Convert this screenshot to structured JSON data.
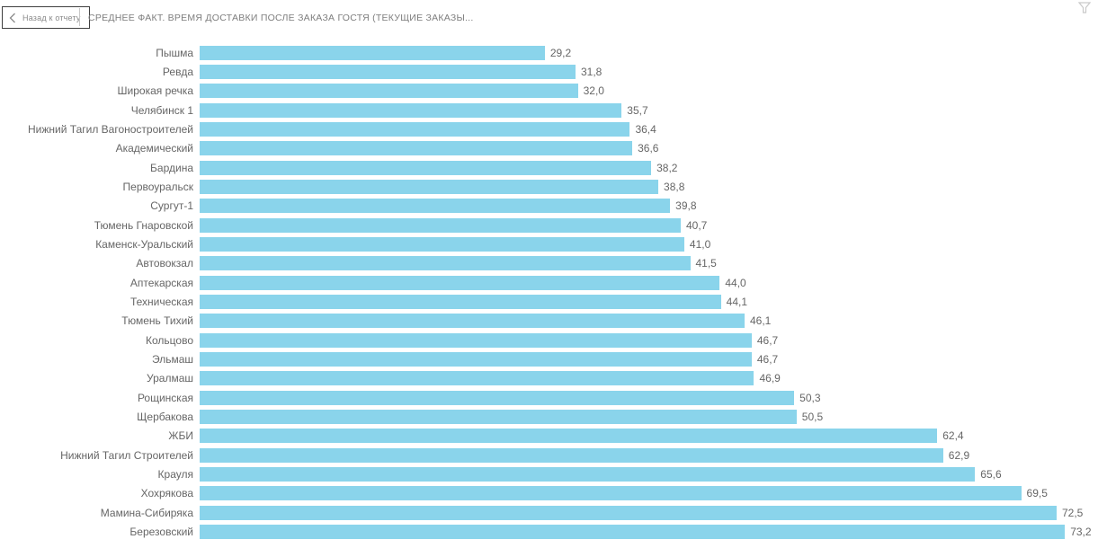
{
  "header": {
    "back_button_label": "Назад к отчету",
    "title": "СРЕДНЕЕ ФАКТ. ВРЕМЯ ДОСТАВКИ ПОСЛЕ ЗАКАЗА ГОСТЯ (ТЕКУЩИЕ ЗАКАЗЫ...",
    "filter_icon": "funnel-icon"
  },
  "colors": {
    "bar": "#8AD4EB",
    "label": "#666666",
    "title": "#7e7e7e",
    "back_border": "#3f3f3f",
    "icon_gray": "#c9c9c9"
  },
  "chart_data": {
    "type": "bar",
    "orientation": "horizontal",
    "title": "СРЕДНЕЕ ФАКТ. ВРЕМЯ ДОСТАВКИ ПОСЛЕ ЗАКАЗА ГОСТЯ (ТЕКУЩИЕ ЗАКАЗЫ...",
    "sort": "ascending",
    "grid": false,
    "legend": false,
    "xlim": [
      0,
      76
    ],
    "categories": [
      "Пышма",
      "Ревда",
      "Широкая речка",
      "Челябинск 1",
      "Нижний Тагил Вагоностроителей",
      "Академический",
      "Бардина",
      "Первоуральск",
      "Сургут-1",
      "Тюмень Гнаровской",
      "Каменск-Уральский",
      "Автовокзал",
      "Аптекарская",
      "Техническая",
      "Тюмень Тихий",
      "Кольцово",
      "Эльмаш",
      "Уралмаш",
      "Рощинская",
      "Щербакова",
      "ЖБИ",
      "Нижний Тагил Строителей",
      "Крауля",
      "Хохрякова",
      "Мамина-Сибиряка",
      "Березовский"
    ],
    "values": [
      29.2,
      31.8,
      32.0,
      35.7,
      36.4,
      36.6,
      38.2,
      38.8,
      39.8,
      40.7,
      41.0,
      41.5,
      44.0,
      44.1,
      46.1,
      46.7,
      46.7,
      46.9,
      50.3,
      50.5,
      62.4,
      62.9,
      65.6,
      69.5,
      72.5,
      73.2
    ],
    "value_labels": [
      "29,2",
      "31,8",
      "32,0",
      "35,7",
      "36,4",
      "36,6",
      "38,2",
      "38,8",
      "39,8",
      "40,7",
      "41,0",
      "41,5",
      "44,0",
      "44,1",
      "46,1",
      "46,7",
      "46,7",
      "46,9",
      "50,3",
      "50,5",
      "62,4",
      "62,9",
      "65,6",
      "69,5",
      "72,5",
      "73,2"
    ]
  }
}
